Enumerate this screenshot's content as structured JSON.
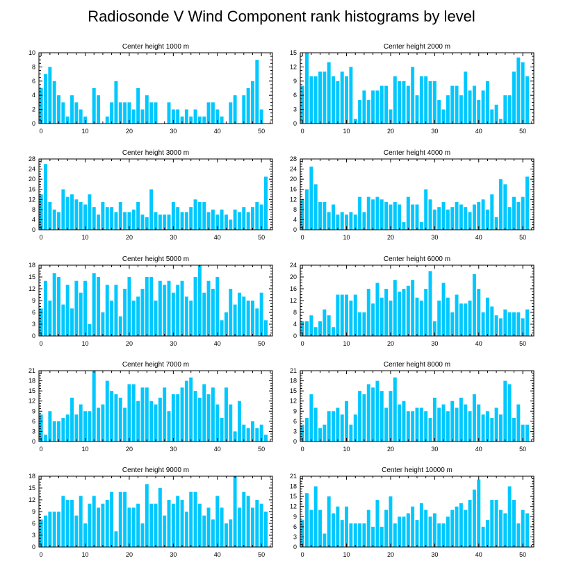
{
  "figure_title": "Radiosonde V Wind Component rank histograms by level",
  "colors": {
    "bar": "#00c8ff",
    "axis": "#000000",
    "background": "#ffffff"
  },
  "chart_data": [
    {
      "type": "bar",
      "title": "Center height 1000 m",
      "xlabel": "",
      "ylabel": "",
      "xlim": [
        -0.5,
        52.5
      ],
      "xticks": [
        0,
        10,
        20,
        30,
        40,
        50
      ],
      "ylim": [
        0,
        10
      ],
      "yticks": [
        0,
        2,
        4,
        6,
        8,
        10
      ],
      "categories": [
        0,
        1,
        2,
        3,
        4,
        5,
        6,
        7,
        8,
        9,
        10,
        11,
        12,
        13,
        14,
        15,
        16,
        17,
        18,
        19,
        20,
        21,
        22,
        23,
        24,
        25,
        26,
        27,
        28,
        29,
        30,
        31,
        32,
        33,
        34,
        35,
        36,
        37,
        38,
        39,
        40,
        41,
        42,
        43,
        44,
        45,
        46,
        47,
        48,
        49,
        50,
        51
      ],
      "values": [
        5,
        7,
        8,
        6,
        4,
        3,
        1,
        4,
        3,
        2,
        1,
        0,
        5,
        4,
        0,
        1,
        3,
        6,
        3,
        3,
        3,
        2,
        5,
        2,
        4,
        3,
        3,
        0,
        0,
        3,
        2,
        2,
        1,
        2,
        1,
        2,
        1,
        1,
        3,
        3,
        2,
        1,
        0,
        3,
        4,
        0,
        4,
        5,
        6,
        9,
        2,
        0
      ]
    },
    {
      "type": "bar",
      "title": "Center height 2000 m",
      "xlabel": "",
      "ylabel": "",
      "xlim": [
        -0.5,
        52.5
      ],
      "xticks": [
        0,
        10,
        20,
        30,
        40,
        50
      ],
      "ylim": [
        0,
        15
      ],
      "yticks": [
        0,
        3,
        6,
        9,
        12,
        15
      ],
      "categories": [
        0,
        1,
        2,
        3,
        4,
        5,
        6,
        7,
        8,
        9,
        10,
        11,
        12,
        13,
        14,
        15,
        16,
        17,
        18,
        19,
        20,
        21,
        22,
        23,
        24,
        25,
        26,
        27,
        28,
        29,
        30,
        31,
        32,
        33,
        34,
        35,
        36,
        37,
        38,
        39,
        40,
        41,
        42,
        43,
        44,
        45,
        46,
        47,
        48,
        49,
        50,
        51
      ],
      "values": [
        8,
        15,
        10,
        10,
        11,
        11,
        13,
        10,
        9,
        11,
        10,
        12,
        1,
        5,
        7,
        5,
        7,
        7,
        8,
        8,
        3,
        10,
        9,
        9,
        8,
        12,
        6,
        10,
        10,
        9,
        9,
        5,
        3,
        6,
        8,
        8,
        6,
        11,
        7,
        8,
        5,
        7,
        9,
        3,
        4,
        1,
        6,
        6,
        11,
        14,
        13,
        10
      ]
    },
    {
      "type": "bar",
      "title": "Center height 3000 m",
      "xlabel": "",
      "ylabel": "",
      "xlim": [
        -0.5,
        52.5
      ],
      "xticks": [
        0,
        10,
        20,
        30,
        40,
        50
      ],
      "ylim": [
        0,
        28
      ],
      "yticks": [
        0,
        4,
        8,
        12,
        16,
        20,
        24,
        28
      ],
      "categories": [
        0,
        1,
        2,
        3,
        4,
        5,
        6,
        7,
        8,
        9,
        10,
        11,
        12,
        13,
        14,
        15,
        16,
        17,
        18,
        19,
        20,
        21,
        22,
        23,
        24,
        25,
        26,
        27,
        28,
        29,
        30,
        31,
        32,
        33,
        34,
        35,
        36,
        37,
        38,
        39,
        40,
        41,
        42,
        43,
        44,
        45,
        46,
        47,
        48,
        49,
        50,
        51
      ],
      "values": [
        14,
        26,
        11,
        8,
        7,
        16,
        13,
        14,
        12,
        11,
        10,
        14,
        9,
        6,
        11,
        9,
        9,
        7,
        11,
        7,
        7,
        8,
        11,
        6,
        5,
        16,
        7,
        6,
        6,
        6,
        11,
        9,
        7,
        7,
        9,
        12,
        11,
        11,
        7,
        8,
        6,
        8,
        6,
        4,
        8,
        7,
        9,
        7,
        9,
        11,
        10,
        21
      ]
    },
    {
      "type": "bar",
      "title": "Center height 4000 m",
      "xlabel": "",
      "ylabel": "",
      "xlim": [
        -0.5,
        52.5
      ],
      "xticks": [
        0,
        10,
        20,
        30,
        40,
        50
      ],
      "ylim": [
        0,
        28
      ],
      "yticks": [
        0,
        4,
        8,
        12,
        16,
        20,
        24,
        28
      ],
      "categories": [
        0,
        1,
        2,
        3,
        4,
        5,
        6,
        7,
        8,
        9,
        10,
        11,
        12,
        13,
        14,
        15,
        16,
        17,
        18,
        19,
        20,
        21,
        22,
        23,
        24,
        25,
        26,
        27,
        28,
        29,
        30,
        31,
        32,
        33,
        34,
        35,
        36,
        37,
        38,
        39,
        40,
        41,
        42,
        43,
        44,
        45,
        46,
        47,
        48,
        49,
        50,
        51
      ],
      "values": [
        12,
        16,
        25,
        18,
        11,
        11,
        7,
        10,
        6,
        7,
        6,
        7,
        6,
        13,
        7,
        13,
        12,
        13,
        12,
        11,
        10,
        11,
        10,
        3,
        13,
        10,
        10,
        3,
        16,
        12,
        8,
        9,
        11,
        8,
        9,
        11,
        10,
        9,
        7,
        10,
        11,
        12,
        8,
        14,
        5,
        20,
        18,
        9,
        13,
        11,
        13,
        21
      ]
    },
    {
      "type": "bar",
      "title": "Center height 5000 m",
      "xlabel": "",
      "ylabel": "",
      "xlim": [
        -0.5,
        52.5
      ],
      "xticks": [
        0,
        10,
        20,
        30,
        40,
        50
      ],
      "ylim": [
        0,
        18
      ],
      "yticks": [
        0,
        3,
        6,
        9,
        12,
        15,
        18
      ],
      "categories": [
        0,
        1,
        2,
        3,
        4,
        5,
        6,
        7,
        8,
        9,
        10,
        11,
        12,
        13,
        14,
        15,
        16,
        17,
        18,
        19,
        20,
        21,
        22,
        23,
        24,
        25,
        26,
        27,
        28,
        29,
        30,
        31,
        32,
        33,
        34,
        35,
        36,
        37,
        38,
        39,
        40,
        41,
        42,
        43,
        44,
        45,
        46,
        47,
        48,
        49,
        50,
        51
      ],
      "values": [
        7,
        14,
        9,
        16,
        15,
        8,
        13,
        7,
        14,
        11,
        14,
        3,
        16,
        15,
        6,
        13,
        9,
        13,
        5,
        12,
        15,
        9,
        10,
        12,
        15,
        15,
        9,
        14,
        13,
        14,
        11,
        13,
        14,
        10,
        9,
        15,
        18,
        11,
        14,
        12,
        15,
        4,
        6,
        12,
        8,
        11,
        10,
        9,
        9,
        7,
        11,
        4
      ]
    },
    {
      "type": "bar",
      "title": "Center height 6000 m",
      "xlabel": "",
      "ylabel": "",
      "xlim": [
        -0.5,
        52.5
      ],
      "xticks": [
        0,
        10,
        20,
        30,
        40,
        50
      ],
      "ylim": [
        0,
        24
      ],
      "yticks": [
        0,
        4,
        8,
        12,
        16,
        20,
        24
      ],
      "categories": [
        0,
        1,
        2,
        3,
        4,
        5,
        6,
        7,
        8,
        9,
        10,
        11,
        12,
        13,
        14,
        15,
        16,
        17,
        18,
        19,
        20,
        21,
        22,
        23,
        24,
        25,
        26,
        27,
        28,
        29,
        30,
        31,
        32,
        33,
        34,
        35,
        36,
        37,
        38,
        39,
        40,
        41,
        42,
        43,
        44,
        45,
        46,
        47,
        48,
        49,
        50,
        51
      ],
      "values": [
        5,
        5,
        7,
        3,
        5,
        9,
        7,
        3,
        14,
        14,
        14,
        12,
        14,
        8,
        8,
        16,
        11,
        18,
        13,
        16,
        12,
        19,
        15,
        16,
        17,
        19,
        13,
        12,
        16,
        22,
        5,
        12,
        18,
        13,
        8,
        14,
        11,
        11,
        12,
        21,
        16,
        8,
        13,
        10,
        7,
        6,
        9,
        8,
        8,
        8,
        6,
        9
      ]
    },
    {
      "type": "bar",
      "title": "Center height 7000 m",
      "xlabel": "",
      "ylabel": "",
      "xlim": [
        -0.5,
        52.5
      ],
      "xticks": [
        0,
        10,
        20,
        30,
        40,
        50
      ],
      "ylim": [
        0,
        21
      ],
      "yticks": [
        0,
        3,
        6,
        9,
        12,
        15,
        18,
        21
      ],
      "categories": [
        0,
        1,
        2,
        3,
        4,
        5,
        6,
        7,
        8,
        9,
        10,
        11,
        12,
        13,
        14,
        15,
        16,
        17,
        18,
        19,
        20,
        21,
        22,
        23,
        24,
        25,
        26,
        27,
        28,
        29,
        30,
        31,
        32,
        33,
        34,
        35,
        36,
        37,
        38,
        39,
        40,
        41,
        42,
        43,
        44,
        45,
        46,
        47,
        48,
        49,
        50,
        51
      ],
      "values": [
        8,
        2,
        9,
        6,
        6,
        7,
        8,
        13,
        8,
        11,
        9,
        9,
        21,
        10,
        11,
        18,
        15,
        14,
        13,
        10,
        17,
        17,
        12,
        16,
        16,
        12,
        11,
        13,
        16,
        9,
        14,
        14,
        16,
        18,
        19,
        15,
        13,
        17,
        14,
        16,
        11,
        7,
        16,
        11,
        3,
        12,
        5,
        4,
        6,
        4,
        5,
        2
      ]
    },
    {
      "type": "bar",
      "title": "Center height 8000 m",
      "xlabel": "",
      "ylabel": "",
      "xlim": [
        -0.5,
        52.5
      ],
      "xticks": [
        0,
        10,
        20,
        30,
        40,
        50
      ],
      "ylim": [
        0,
        21
      ],
      "yticks": [
        0,
        3,
        6,
        9,
        12,
        15,
        18,
        21
      ],
      "categories": [
        0,
        1,
        2,
        3,
        4,
        5,
        6,
        7,
        8,
        9,
        10,
        11,
        12,
        13,
        14,
        15,
        16,
        17,
        18,
        19,
        20,
        21,
        22,
        23,
        24,
        25,
        26,
        27,
        28,
        29,
        30,
        31,
        32,
        33,
        34,
        35,
        36,
        37,
        38,
        39,
        40,
        41,
        42,
        43,
        44,
        45,
        46,
        47,
        48,
        49,
        50,
        51
      ],
      "values": [
        5,
        7,
        14,
        10,
        4,
        5,
        9,
        9,
        10,
        8,
        12,
        5,
        8,
        15,
        14,
        17,
        16,
        18,
        15,
        10,
        15,
        19,
        11,
        12,
        9,
        9,
        10,
        10,
        9,
        7,
        13,
        10,
        11,
        9,
        12,
        10,
        13,
        11,
        9,
        14,
        11,
        8,
        9,
        7,
        10,
        8,
        18,
        17,
        7,
        11,
        5,
        5
      ]
    },
    {
      "type": "bar",
      "title": "Center height 9000 m",
      "xlabel": "",
      "ylabel": "",
      "xlim": [
        -0.5,
        52.5
      ],
      "xticks": [
        0,
        10,
        20,
        30,
        40,
        50
      ],
      "ylim": [
        0,
        18
      ],
      "yticks": [
        0,
        3,
        6,
        9,
        12,
        15,
        18
      ],
      "categories": [
        0,
        1,
        2,
        3,
        4,
        5,
        6,
        7,
        8,
        9,
        10,
        11,
        12,
        13,
        14,
        15,
        16,
        17,
        18,
        19,
        20,
        21,
        22,
        23,
        24,
        25,
        26,
        27,
        28,
        29,
        30,
        31,
        32,
        33,
        34,
        35,
        36,
        37,
        38,
        39,
        40,
        41,
        42,
        43,
        44,
        45,
        46,
        47,
        48,
        49,
        50,
        51
      ],
      "values": [
        7,
        8,
        9,
        9,
        9,
        13,
        12,
        12,
        8,
        13,
        6,
        11,
        13,
        10,
        11,
        12,
        14,
        4,
        14,
        14,
        10,
        10,
        11,
        6,
        16,
        11,
        11,
        15,
        8,
        12,
        11,
        13,
        12,
        9,
        14,
        14,
        11,
        8,
        10,
        7,
        13,
        10,
        6,
        7,
        18,
        10,
        14,
        13,
        10,
        12,
        11,
        9
      ]
    },
    {
      "type": "bar",
      "title": "Center height 10000 m",
      "xlabel": "",
      "ylabel": "",
      "xlim": [
        -0.5,
        52.5
      ],
      "xticks": [
        0,
        10,
        20,
        30,
        40,
        50
      ],
      "ylim": [
        0,
        21
      ],
      "yticks": [
        0,
        3,
        6,
        9,
        12,
        15,
        18,
        21
      ],
      "categories": [
        0,
        1,
        2,
        3,
        4,
        5,
        6,
        7,
        8,
        9,
        10,
        11,
        12,
        13,
        14,
        15,
        16,
        17,
        18,
        19,
        20,
        21,
        22,
        23,
        24,
        25,
        26,
        27,
        28,
        29,
        30,
        31,
        32,
        33,
        34,
        35,
        36,
        37,
        38,
        39,
        40,
        41,
        42,
        43,
        44,
        45,
        46,
        47,
        48,
        49,
        50,
        51
      ],
      "values": [
        8,
        16,
        11,
        18,
        11,
        4,
        15,
        10,
        12,
        8,
        12,
        7,
        7,
        7,
        7,
        11,
        6,
        14,
        6,
        11,
        15,
        7,
        9,
        9,
        10,
        12,
        8,
        13,
        11,
        9,
        10,
        7,
        7,
        9,
        11,
        12,
        13,
        11,
        14,
        17,
        20,
        6,
        8,
        14,
        14,
        11,
        10,
        18,
        14,
        7,
        11,
        10
      ]
    }
  ]
}
